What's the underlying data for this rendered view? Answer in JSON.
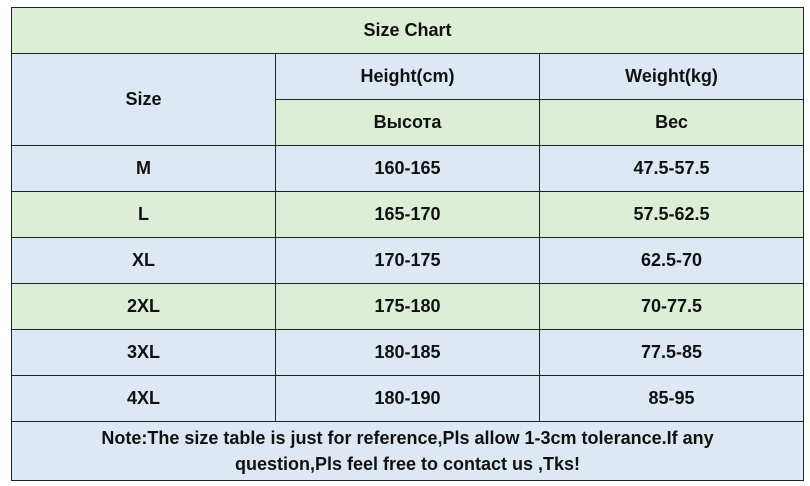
{
  "title": "Size Chart",
  "header": {
    "size": "Size",
    "height": "Height(cm)",
    "weight": "Weight(kg)",
    "height_ru": "Высота",
    "weight_ru": "Вес"
  },
  "rows": [
    {
      "size": "M",
      "height": "160-165",
      "weight": "47.5-57.5"
    },
    {
      "size": "L",
      "height": "165-170",
      "weight": "57.5-62.5"
    },
    {
      "size": "XL",
      "height": "170-175",
      "weight": "62.5-70"
    },
    {
      "size": "2XL",
      "height": "175-180",
      "weight": "70-77.5"
    },
    {
      "size": "3XL",
      "height": "180-185",
      "weight": "77.5-85"
    },
    {
      "size": "4XL",
      "height": "180-190",
      "weight": "85-95"
    }
  ],
  "note": {
    "line1": "Note:The size table is just for reference,Pls allow 1-3cm tolerance.If any",
    "line2": "question,Pls feel free to contact us ,Tks!"
  },
  "colors": {
    "green_band": "#dcefd6",
    "blue_band": "#dde8f4",
    "note_text": "#ff1a1a"
  }
}
